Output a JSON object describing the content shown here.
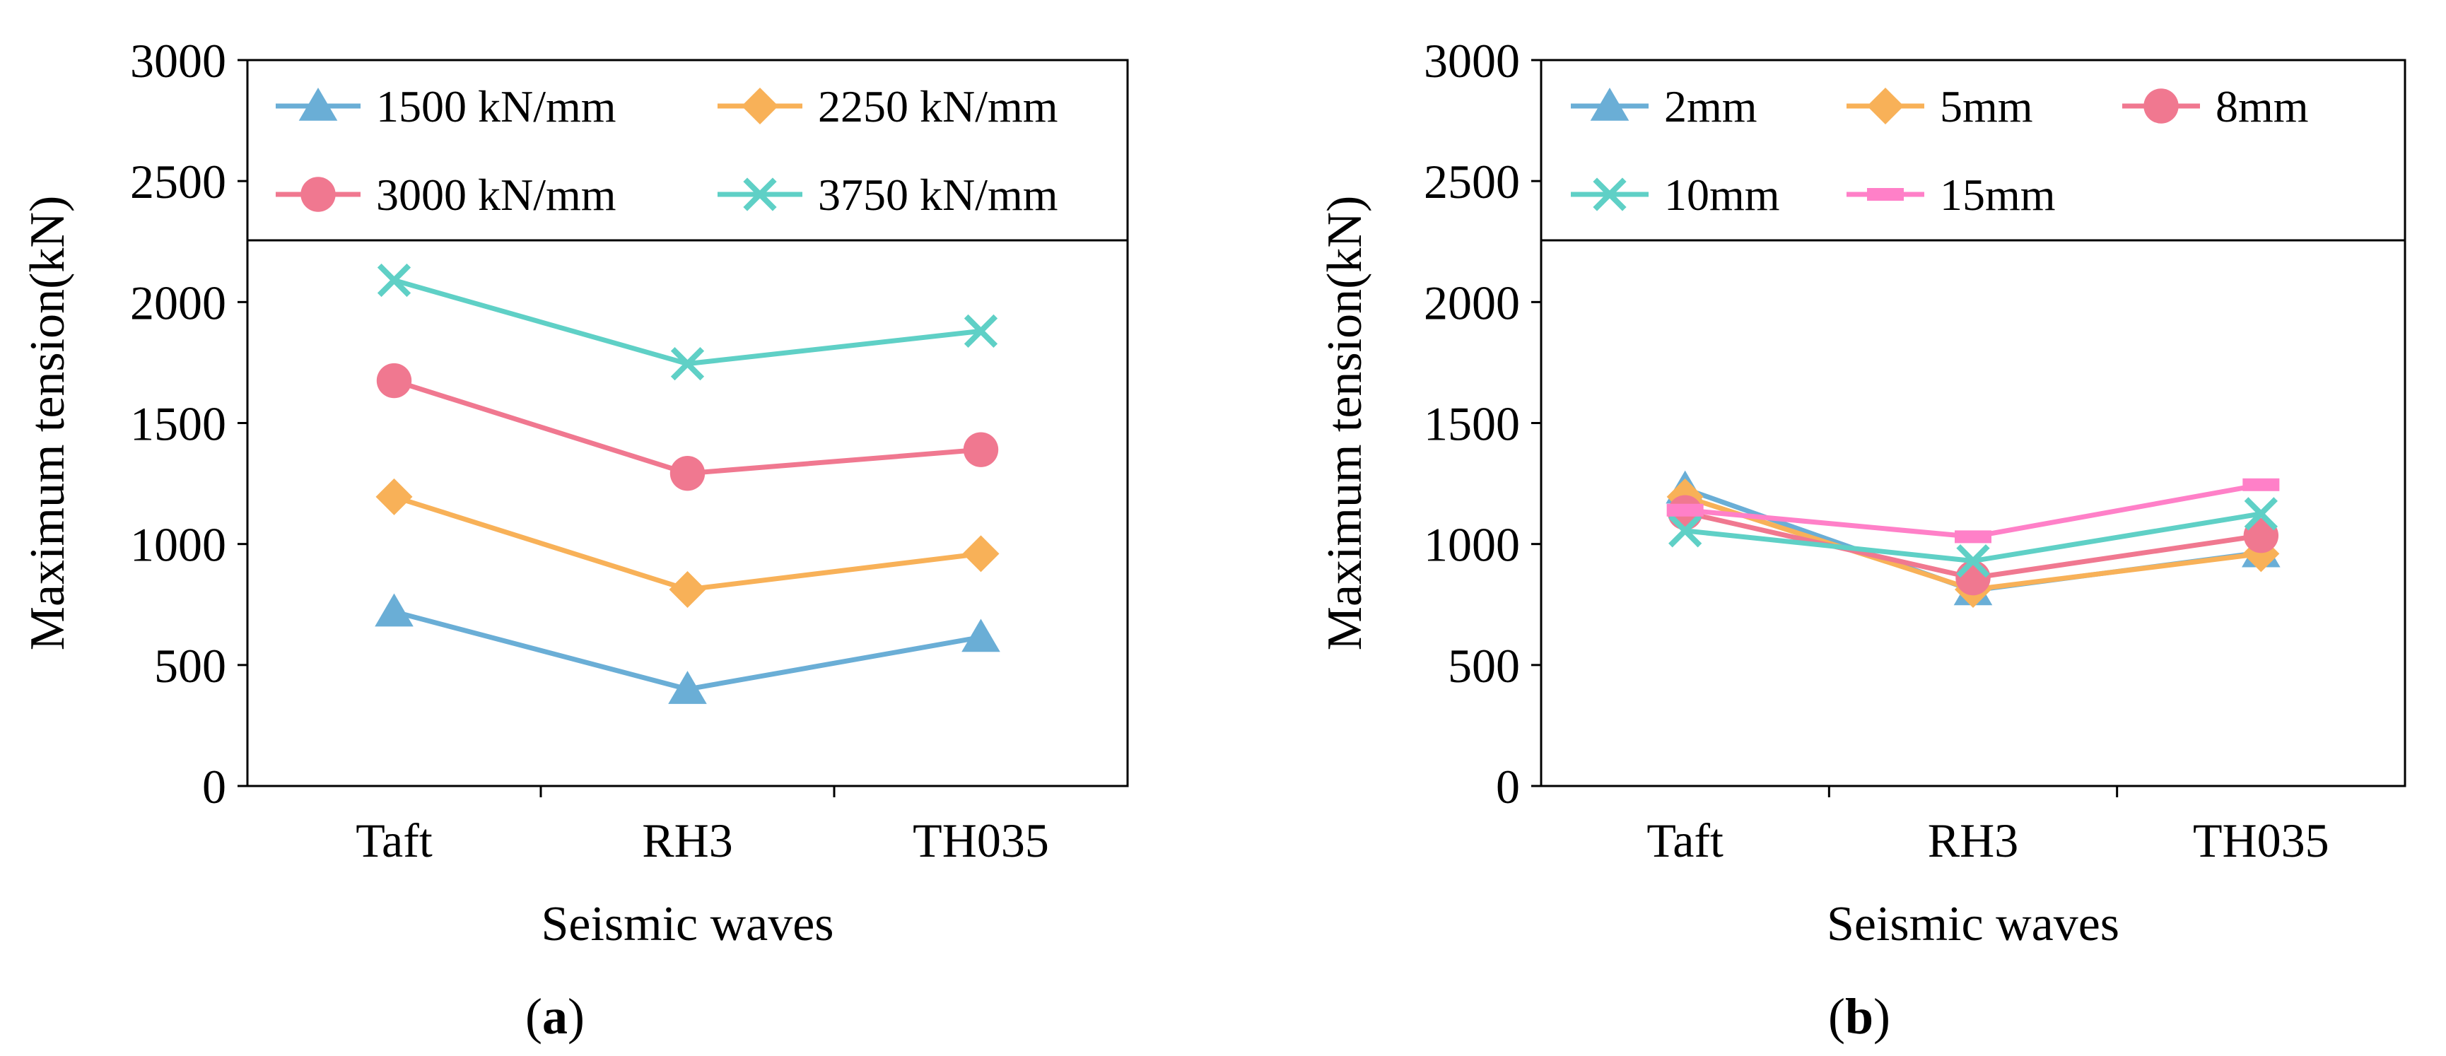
{
  "chart_data": [
    {
      "type": "line",
      "panel_label": "a",
      "xlabel": "Seismic waves",
      "ylabel": "Maximum tension(kN)",
      "categories": [
        "Taft",
        "RH3",
        "TH035"
      ],
      "ylim": [
        0,
        3000
      ],
      "yticks": [
        "0",
        "500",
        "1000",
        "1500",
        "2000",
        "2500",
        "3000"
      ],
      "legend": "top, inside plot, 2 columns",
      "series": [
        {
          "name": "1500 kN/mm",
          "values": [
            720,
            400,
            615
          ],
          "color": "#6aaed6",
          "marker": "triangle"
        },
        {
          "name": "2250 kN/mm",
          "values": [
            1195,
            812,
            960
          ],
          "color": "#f8b158",
          "marker": "diamond"
        },
        {
          "name": "3000 kN/mm",
          "values": [
            1675,
            1292,
            1390
          ],
          "color": "#f07890",
          "marker": "circle"
        },
        {
          "name": "3750 kN/mm",
          "values": [
            2090,
            1745,
            1880
          ],
          "color": "#5fd0c6",
          "marker": "x"
        }
      ]
    },
    {
      "type": "line",
      "panel_label": "b",
      "xlabel": "Seismic waves",
      "ylabel": "Maximum tension(kN)",
      "categories": [
        "Taft",
        "RH3",
        "TH035"
      ],
      "ylim": [
        0,
        3000
      ],
      "yticks": [
        "0",
        "500",
        "1000",
        "1500",
        "2000",
        "2500",
        "3000"
      ],
      "legend": "top, inside plot, 3 columns",
      "series": [
        {
          "name": "2mm",
          "values": [
            1228,
            808,
            965
          ],
          "color": "#6aaed6",
          "marker": "triangle"
        },
        {
          "name": "5mm",
          "values": [
            1195,
            812,
            960
          ],
          "color": "#f8b158",
          "marker": "diamond"
        },
        {
          "name": "8mm",
          "values": [
            1130,
            860,
            1035
          ],
          "color": "#f07890",
          "marker": "circle"
        },
        {
          "name": "10mm",
          "values": [
            1055,
            930,
            1125
          ],
          "color": "#5fd0c6",
          "marker": "x"
        },
        {
          "name": "15mm",
          "values": [
            1140,
            1030,
            1245
          ],
          "color": "#ff80c8",
          "marker": "bar"
        }
      ]
    }
  ]
}
